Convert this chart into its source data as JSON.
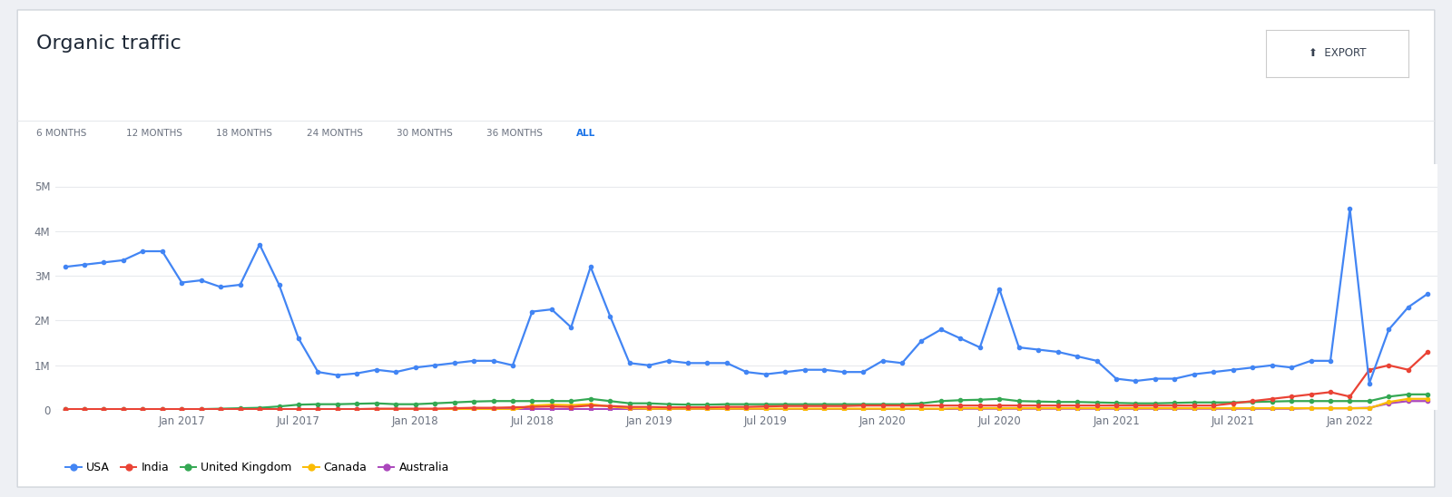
{
  "title": "Organic traffic",
  "export_button": "EXPORT",
  "tab_labels": [
    "6 MONTHS",
    "12 MONTHS",
    "18 MONTHS",
    "24 MONTHS",
    "30 MONTHS",
    "36 MONTHS",
    "ALL"
  ],
  "active_tab": "ALL",
  "background_color": "#eef0f4",
  "card_color": "#ffffff",
  "plot_bg_color": "#ffffff",
  "grid_color": "#e8eaed",
  "title_color": "#1f2937",
  "tab_color": "#6b7280",
  "active_tab_color": "#1a73e8",
  "legend_items": [
    "USA",
    "India",
    "United Kingdom",
    "Canada",
    "Australia"
  ],
  "legend_colors": [
    "#4285f4",
    "#ea4335",
    "#34a853",
    "#fbbc04",
    "#ab47bc"
  ],
  "ylim": [
    0,
    5500000
  ],
  "yticks": [
    0,
    1000000,
    2000000,
    3000000,
    4000000,
    5000000
  ],
  "ytick_labels": [
    "0",
    "1M",
    "2M",
    "3M",
    "4M",
    "5M"
  ],
  "usa": [
    3200000,
    3250000,
    3300000,
    3350000,
    3550000,
    3550000,
    2850000,
    2900000,
    2750000,
    2800000,
    3700000,
    2800000,
    1600000,
    850000,
    780000,
    820000,
    900000,
    850000,
    950000,
    1000000,
    1050000,
    1100000,
    1100000,
    1000000,
    2200000,
    2250000,
    1850000,
    3200000,
    2100000,
    1050000,
    1000000,
    1100000,
    1050000,
    1050000,
    1050000,
    850000,
    800000,
    850000,
    900000,
    900000,
    850000,
    850000,
    1100000,
    1050000,
    1550000,
    1800000,
    1600000,
    1400000,
    2700000,
    1400000,
    1350000,
    1300000,
    1200000,
    1100000,
    700000,
    650000,
    700000,
    700000,
    800000,
    850000,
    900000,
    950000,
    1000000,
    950000,
    1100000,
    1100000,
    4500000,
    600000,
    1800000,
    2300000,
    2600000
  ],
  "india": [
    20000,
    20000,
    20000,
    20000,
    20000,
    20000,
    20000,
    20000,
    20000,
    20000,
    20000,
    20000,
    20000,
    20000,
    20000,
    20000,
    30000,
    30000,
    30000,
    30000,
    40000,
    50000,
    50000,
    60000,
    70000,
    80000,
    70000,
    100000,
    90000,
    70000,
    70000,
    60000,
    60000,
    60000,
    70000,
    70000,
    80000,
    90000,
    90000,
    90000,
    90000,
    100000,
    100000,
    100000,
    100000,
    100000,
    100000,
    100000,
    100000,
    100000,
    100000,
    100000,
    100000,
    100000,
    100000,
    100000,
    100000,
    100000,
    100000,
    100000,
    150000,
    200000,
    250000,
    300000,
    350000,
    400000,
    300000,
    900000,
    1000000,
    900000,
    1300000
  ],
  "uk": [
    20000,
    20000,
    20000,
    20000,
    20000,
    20000,
    20000,
    20000,
    30000,
    40000,
    50000,
    80000,
    120000,
    130000,
    130000,
    140000,
    150000,
    130000,
    130000,
    150000,
    170000,
    190000,
    200000,
    200000,
    200000,
    200000,
    200000,
    250000,
    200000,
    150000,
    150000,
    130000,
    120000,
    120000,
    130000,
    130000,
    130000,
    130000,
    130000,
    130000,
    130000,
    130000,
    130000,
    130000,
    150000,
    200000,
    220000,
    230000,
    250000,
    200000,
    190000,
    180000,
    180000,
    170000,
    160000,
    150000,
    150000,
    160000,
    170000,
    170000,
    170000,
    180000,
    190000,
    200000,
    200000,
    200000,
    200000,
    200000,
    300000,
    350000,
    350000
  ],
  "canada": [
    5000,
    5000,
    5000,
    5000,
    5000,
    5000,
    5000,
    5000,
    5000,
    5000,
    5000,
    5000,
    5000,
    5000,
    5000,
    5000,
    5000,
    5000,
    5000,
    5000,
    5000,
    5000,
    5000,
    5000,
    100000,
    120000,
    110000,
    130000,
    80000,
    40000,
    30000,
    30000,
    30000,
    30000,
    30000,
    30000,
    30000,
    30000,
    30000,
    30000,
    30000,
    30000,
    30000,
    30000,
    30000,
    30000,
    40000,
    40000,
    40000,
    40000,
    40000,
    40000,
    40000,
    40000,
    40000,
    40000,
    40000,
    40000,
    40000,
    40000,
    40000,
    40000,
    40000,
    40000,
    40000,
    40000,
    40000,
    40000,
    180000,
    250000,
    250000
  ],
  "australia": [
    5000,
    5000,
    5000,
    5000,
    5000,
    5000,
    10000,
    10000,
    10000,
    10000,
    10000,
    10000,
    20000,
    20000,
    20000,
    20000,
    20000,
    20000,
    20000,
    20000,
    20000,
    20000,
    20000,
    20000,
    20000,
    20000,
    20000,
    20000,
    20000,
    20000,
    20000,
    20000,
    20000,
    20000,
    20000,
    20000,
    20000,
    20000,
    20000,
    20000,
    20000,
    20000,
    20000,
    20000,
    20000,
    20000,
    30000,
    30000,
    30000,
    30000,
    30000,
    30000,
    30000,
    30000,
    30000,
    30000,
    30000,
    30000,
    30000,
    30000,
    30000,
    30000,
    30000,
    30000,
    40000,
    40000,
    40000,
    50000,
    150000,
    200000,
    200000
  ],
  "xtick_positions": [
    6,
    12,
    18,
    24,
    30,
    36,
    42,
    48,
    54,
    60,
    66
  ],
  "xtick_labels": [
    "Jan 2017",
    "Jul 2017",
    "Jan 2018",
    "Jul 2018",
    "Jan 2019",
    "Jul 2019",
    "Jan 2020",
    "Jul 2020",
    "Jan 2021",
    "Jul 2021",
    "Jan 2022"
  ]
}
